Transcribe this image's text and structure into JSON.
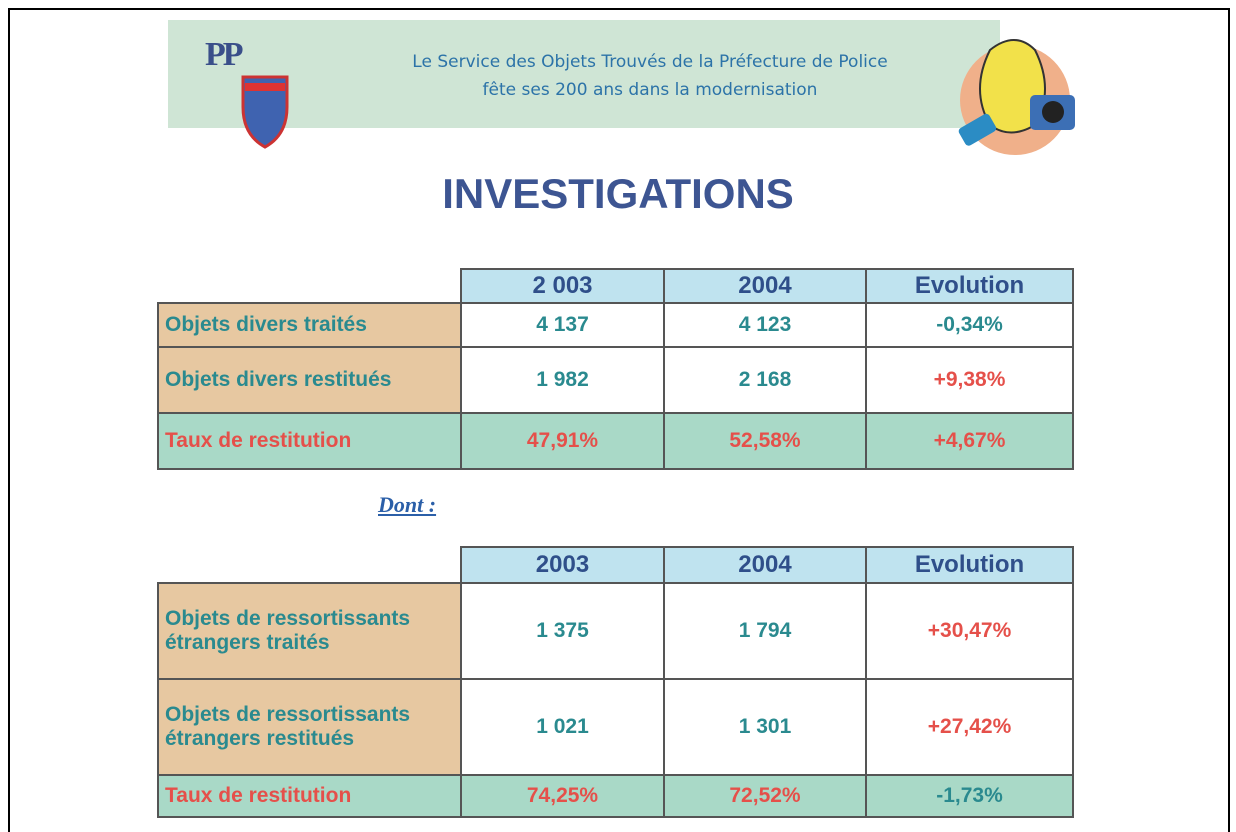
{
  "header": {
    "logo": "PP",
    "banner_lines": [
      "Le Service des Objets Trouvés de la Préfecture de Police",
      "fête ses 200 ans dans la modernisation"
    ]
  },
  "title": "INVESTIGATIONS",
  "table1": {
    "headers": [
      "2 003",
      "2004",
      "Evolution"
    ],
    "rows": [
      [
        "Objets divers traités",
        "4 137",
        "4 123",
        "-0,34%"
      ],
      [
        "Objets divers restitués",
        "1 982",
        "2 168",
        "+9,38%"
      ],
      [
        "Taux de restitution",
        "47,91%",
        "52,58%",
        "+4,67%"
      ]
    ]
  },
  "note": "Dont :",
  "table2": {
    "headers": [
      "2003",
      "2004",
      "Evolution"
    ],
    "rows": [
      [
        "Objets de ressortissants étrangers traités",
        "1 375",
        "1 794",
        "+30,47%"
      ],
      [
        "Objets de ressortissants étrangers restitués",
        "1 021",
        "1 301",
        "+27,42%"
      ],
      [
        "Taux de restitution",
        "74,25%",
        "72,52%",
        "-1,73%"
      ]
    ]
  }
}
